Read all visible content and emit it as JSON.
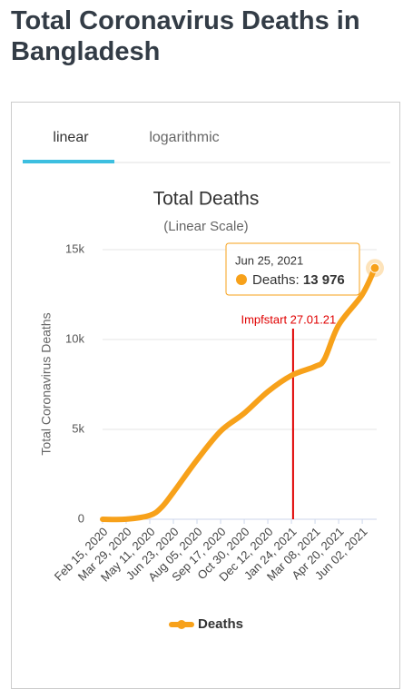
{
  "heading": "Total Coronavirus Deaths in Bangladesh",
  "tabs": [
    {
      "label": "linear",
      "active": true
    },
    {
      "label": "logarithmic",
      "active": false
    }
  ],
  "chart_data": {
    "type": "line",
    "title": "Total Deaths",
    "subtitle": "(Linear Scale)",
    "y_label": "Total Coronavirus Deaths",
    "x": [
      "2020-02-15",
      "2020-03-29",
      "2020-05-11",
      "2020-06-01",
      "2020-06-23",
      "2020-08-05",
      "2020-09-17",
      "2020-10-30",
      "2020-12-12",
      "2021-01-24",
      "2021-03-08",
      "2021-03-25",
      "2021-04-20",
      "2021-06-02",
      "2021-06-25"
    ],
    "series": [
      {
        "name": "Deaths",
        "color": "#f7a11a",
        "values": [
          0,
          5,
          214,
          650,
          1500,
          3300,
          4900,
          5900,
          7100,
          8000,
          8500,
          8900,
          10800,
          12500,
          13976
        ]
      }
    ],
    "xlim": [
      "2020-02-15",
      "2021-06-25"
    ],
    "xticks": [
      {
        "value": "2020-02-15",
        "label": "Feb 15, 2020"
      },
      {
        "value": "2020-03-29",
        "label": "Mar 29, 2020"
      },
      {
        "value": "2020-05-11",
        "label": "May 11, 2020"
      },
      {
        "value": "2020-06-23",
        "label": "Jun 23, 2020"
      },
      {
        "value": "2020-08-05",
        "label": "Aug 05, 2020"
      },
      {
        "value": "2020-09-17",
        "label": "Sep 17, 2020"
      },
      {
        "value": "2020-10-30",
        "label": "Oct 30, 2020"
      },
      {
        "value": "2020-12-12",
        "label": "Dec 12, 2020"
      },
      {
        "value": "2021-01-24",
        "label": "Jan 24, 2021"
      },
      {
        "value": "2021-03-08",
        "label": "Mar 08, 2021"
      },
      {
        "value": "2021-04-20",
        "label": "Apr 20, 2021"
      },
      {
        "value": "2021-06-02",
        "label": "Jun 02, 2021"
      }
    ],
    "ylim": [
      0,
      15000
    ],
    "yticks": [
      0,
      {
        "value": 5000,
        "label": "5k"
      },
      {
        "value": 10000,
        "label": "10k"
      },
      {
        "value": 15000,
        "label": "15k"
      }
    ],
    "grid": true,
    "annotation": {
      "text": "Impfstart 27.01.21",
      "x": "2021-01-27",
      "color": "#e00000"
    },
    "tooltip": {
      "title": "Jun 25, 2021",
      "label": "Deaths:",
      "value": {
        "value": 13976,
        "label": "13 976"
      }
    }
  }
}
